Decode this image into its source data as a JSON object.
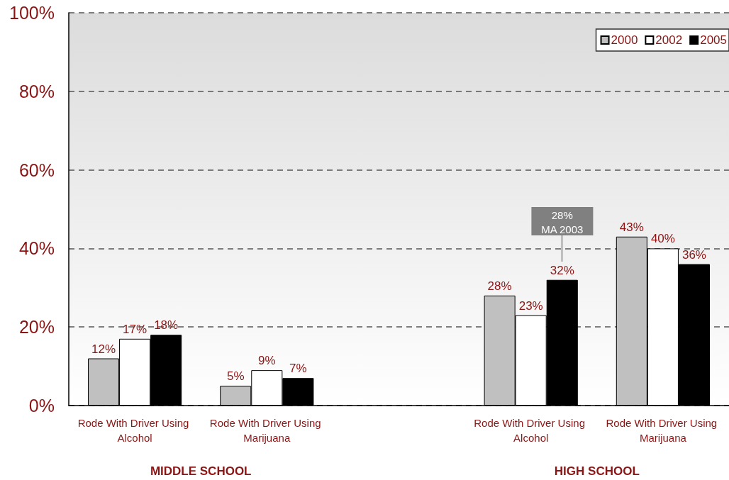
{
  "chart_data": {
    "type": "bar",
    "categories": [
      "Rode With Driver Using Alcohol",
      "Rode With Driver Using Marijuana",
      null,
      "Rode With Driver Using Alcohol",
      "Rode With Driver Using Marijuana"
    ],
    "series": [
      {
        "name": "2000",
        "color": "#c0c0c0",
        "values": [
          12,
          5,
          null,
          28,
          43
        ],
        "value_labels": [
          "12%",
          "5%",
          null,
          "28%",
          "43%"
        ]
      },
      {
        "name": "2002",
        "color": "#ffffff",
        "values": [
          17,
          9,
          null,
          23,
          40
        ],
        "value_labels": [
          "17%",
          "9%",
          null,
          "23%",
          "40%"
        ]
      },
      {
        "name": "2005",
        "color": "#000000",
        "values": [
          18,
          7,
          null,
          32,
          36
        ],
        "value_labels": [
          "18%",
          "7%",
          null,
          "32%",
          "36%"
        ]
      }
    ],
    "ylim": [
      0,
      100
    ],
    "yticks": [
      {
        "value": 0,
        "label": "0%"
      },
      {
        "value": 20,
        "label": "20%"
      },
      {
        "value": 40,
        "label": "40%"
      },
      {
        "value": 60,
        "label": "60%"
      },
      {
        "value": 80,
        "label": "80%"
      },
      {
        "value": 100,
        "label": "100%"
      }
    ],
    "grid": "y",
    "legend": "top right",
    "annotations": [
      "MIDDLE SCHOOL",
      "HIGH SCHOOL",
      "28%\nMA 2003"
    ]
  }
}
